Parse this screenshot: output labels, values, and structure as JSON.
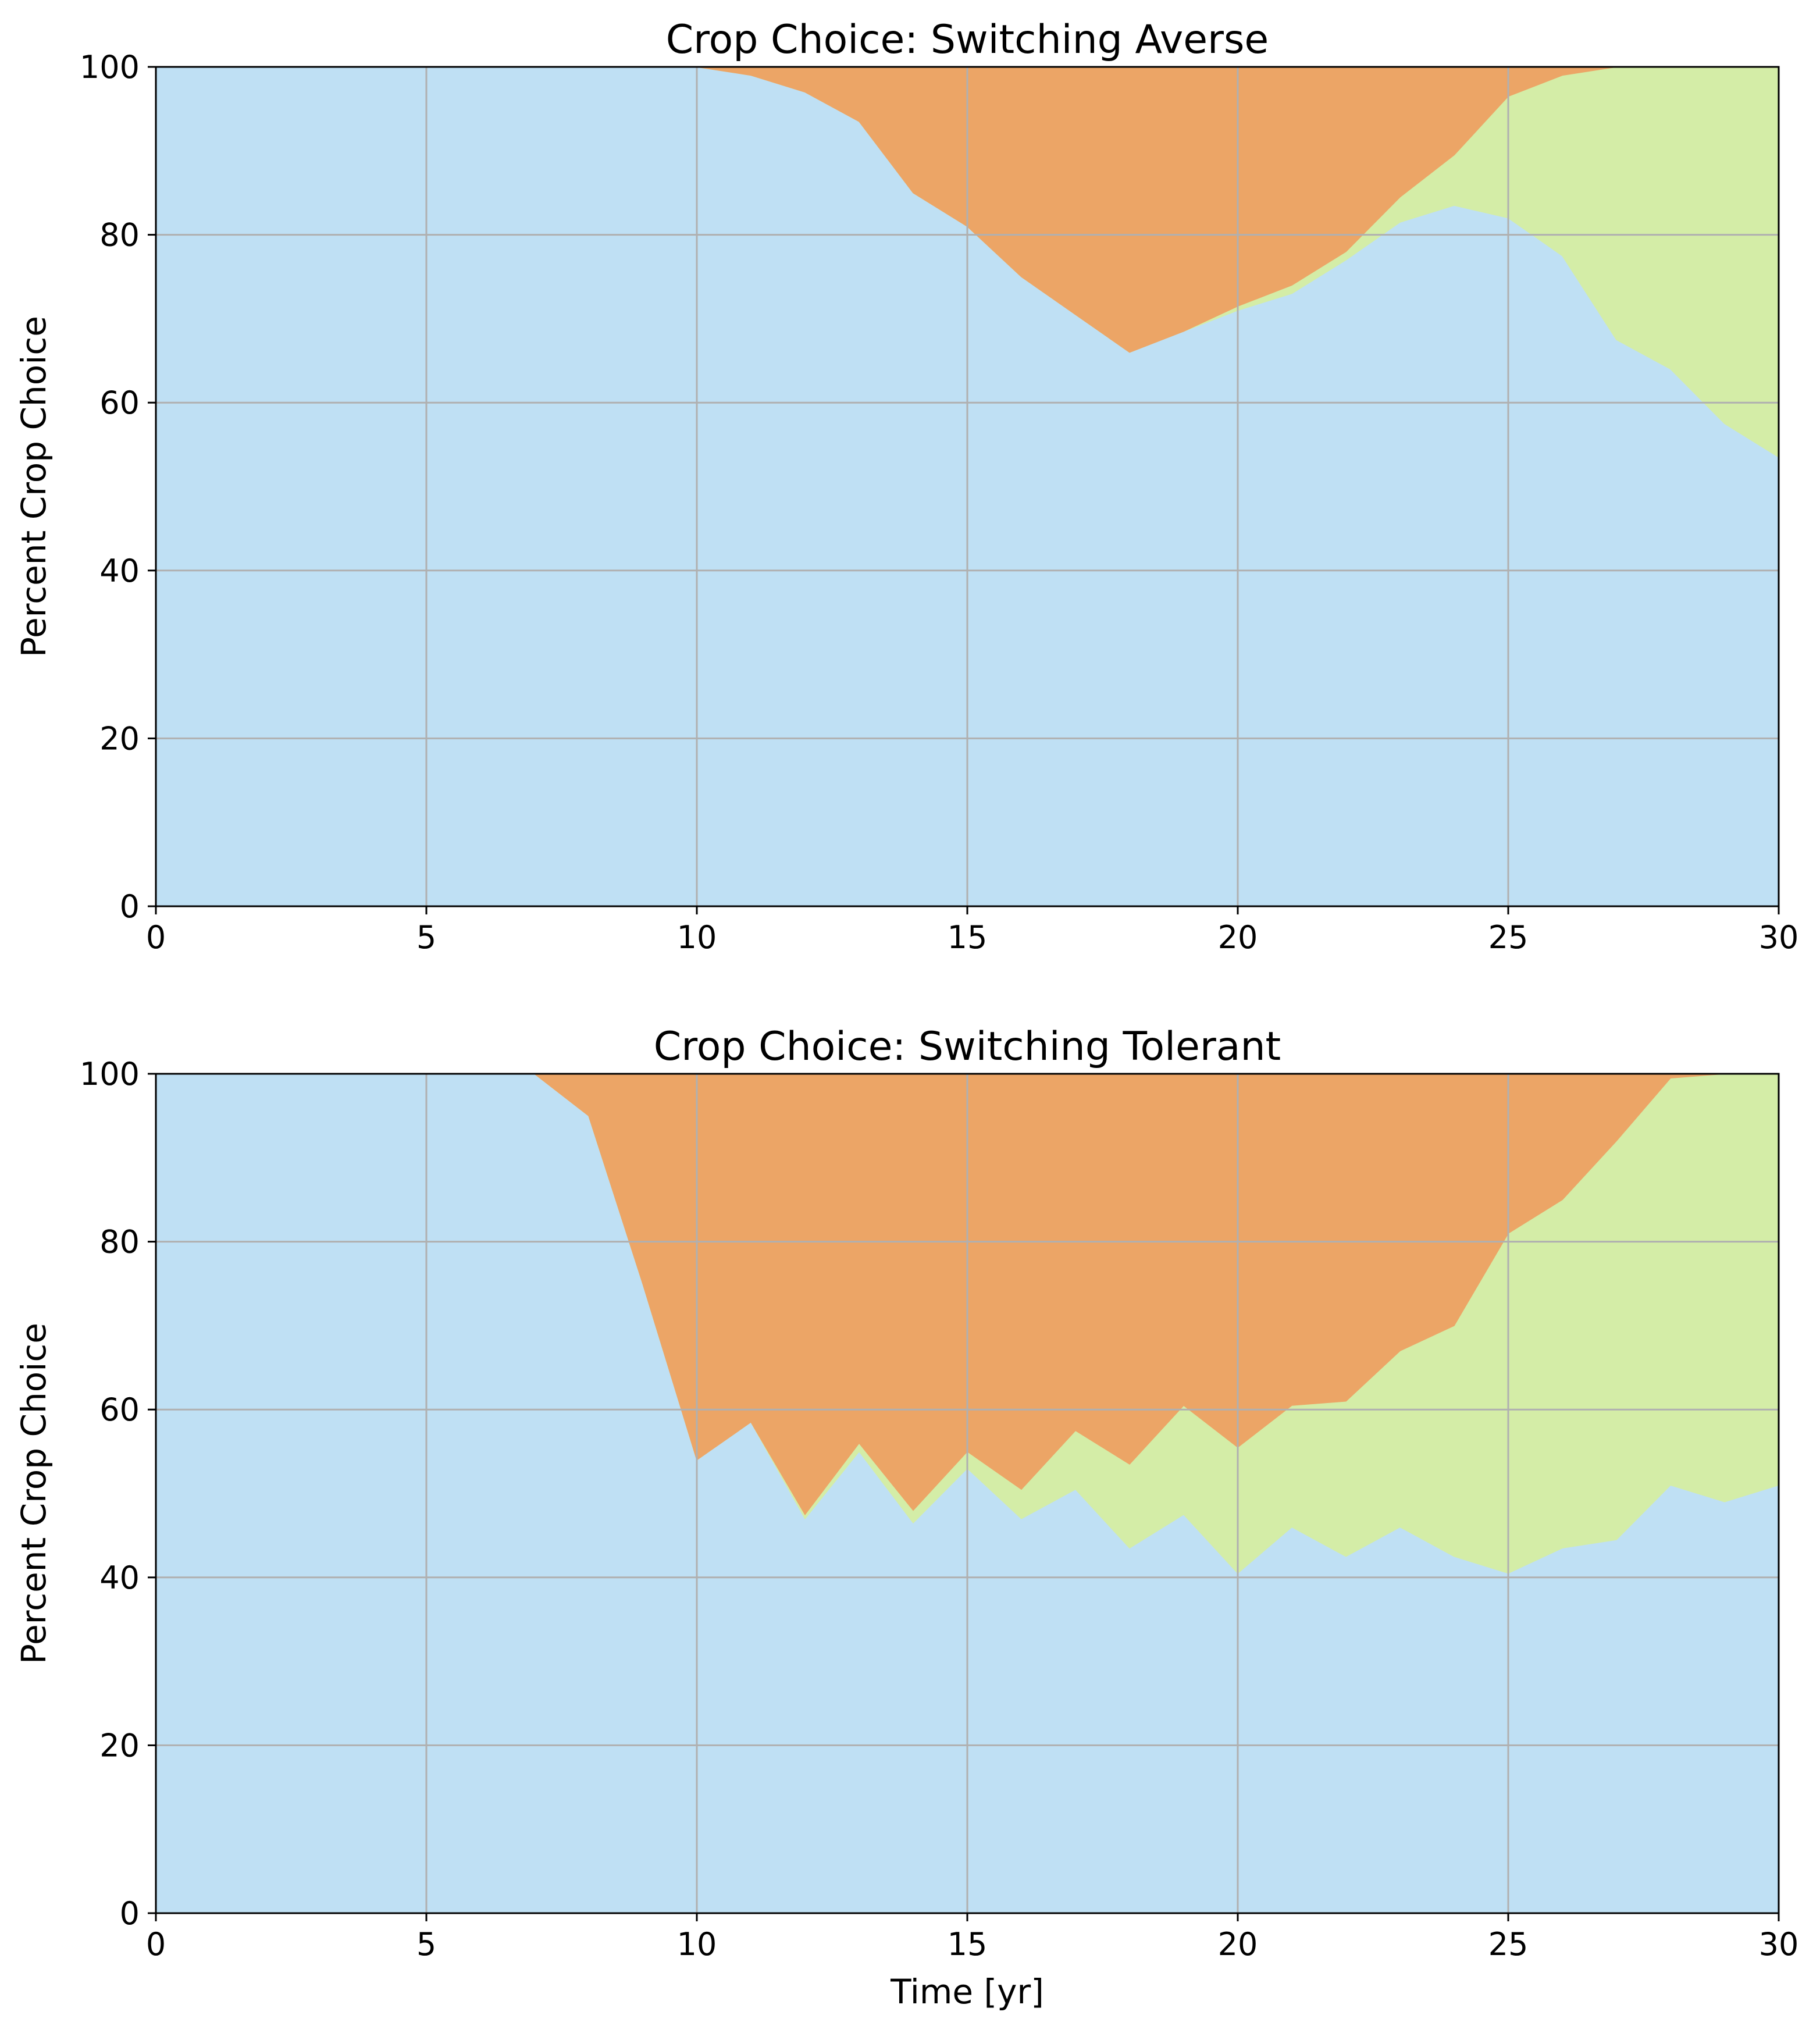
{
  "chart_data": [
    {
      "type": "area",
      "stacked": true,
      "title": "Crop Choice: Switching Averse",
      "xlabel": "",
      "ylabel": "Percent Crop Choice",
      "xlim": [
        0,
        30
      ],
      "ylim": [
        0,
        100
      ],
      "xticks": [
        "0",
        "5",
        "10",
        "15",
        "20",
        "25",
        "30"
      ],
      "yticks": [
        "0",
        "20",
        "40",
        "60",
        "80",
        "100"
      ],
      "grid": true,
      "legend": "none",
      "x": [
        0,
        1,
        2,
        3,
        4,
        5,
        6,
        7,
        8,
        9,
        10,
        11,
        12,
        13,
        14,
        15,
        16,
        17,
        18,
        19,
        20,
        21,
        22,
        23,
        24,
        25,
        26,
        27,
        28,
        29,
        30
      ],
      "series": [
        {
          "color": "#bfe0f4",
          "values": [
            100,
            100,
            100,
            100,
            100,
            100,
            100,
            100,
            100,
            100,
            100,
            99,
            97,
            93.5,
            85,
            81,
            75,
            70.5,
            66,
            68.5,
            71,
            73,
            77,
            81.5,
            83.5,
            82,
            77.5,
            67.5,
            64,
            57.5,
            53.5
          ]
        },
        {
          "color": "#d4eda7",
          "values": [
            0,
            0,
            0,
            0,
            0,
            0,
            0,
            0,
            0,
            0,
            0,
            0,
            0,
            0,
            0,
            0,
            0,
            0,
            0,
            0,
            0.5,
            1,
            1,
            3,
            6,
            14.5,
            21.5,
            32.5,
            36,
            42.5,
            46.5
          ]
        },
        {
          "color": "#eca566",
          "values": [
            0,
            0,
            0,
            0,
            0,
            0,
            0,
            0,
            0,
            0,
            0,
            1,
            3,
            6.5,
            15,
            19,
            25,
            29.5,
            34,
            31.5,
            28.5,
            26,
            22,
            15.5,
            10.5,
            3.5,
            1,
            0,
            0,
            0,
            0
          ]
        }
      ]
    },
    {
      "type": "area",
      "stacked": true,
      "title": "Crop Choice: Switching Tolerant",
      "xlabel": "Time [yr]",
      "ylabel": "Percent Crop Choice",
      "xlim": [
        0,
        30
      ],
      "ylim": [
        0,
        100
      ],
      "xticks": [
        "0",
        "5",
        "10",
        "15",
        "20",
        "25",
        "30"
      ],
      "yticks": [
        "0",
        "20",
        "40",
        "60",
        "80",
        "100"
      ],
      "grid": true,
      "legend": "none",
      "x": [
        0,
        1,
        2,
        3,
        4,
        5,
        6,
        7,
        8,
        9,
        10,
        11,
        12,
        13,
        14,
        15,
        16,
        17,
        18,
        19,
        20,
        21,
        22,
        23,
        24,
        25,
        26,
        27,
        28,
        29,
        30
      ],
      "series": [
        {
          "color": "#bfe0f4",
          "values": [
            100,
            100,
            100,
            100,
            100,
            100,
            100,
            100,
            95,
            75,
            54,
            58.5,
            47,
            55,
            46.5,
            53,
            47,
            50.5,
            43.5,
            47.5,
            40.5,
            46,
            42.5,
            46,
            42.5,
            40.5,
            43.5,
            44.5,
            51,
            49,
            51
          ]
        },
        {
          "color": "#d4eda7",
          "values": [
            0,
            0,
            0,
            0,
            0,
            0,
            0,
            0,
            0,
            0,
            0,
            0,
            0.5,
            1,
            1.5,
            2,
            3.5,
            7,
            10,
            13,
            15,
            14.5,
            18.5,
            21,
            27.5,
            40.5,
            41.5,
            47.5,
            48.5,
            51,
            49
          ]
        },
        {
          "color": "#eca566",
          "values": [
            0,
            0,
            0,
            0,
            0,
            0,
            0,
            0,
            5,
            25,
            46,
            41.5,
            52.5,
            44,
            52,
            45,
            49.5,
            42.5,
            46.5,
            39.5,
            44.5,
            39.5,
            39,
            33,
            30,
            19,
            15,
            8,
            0.5,
            0,
            0
          ]
        }
      ]
    }
  ]
}
